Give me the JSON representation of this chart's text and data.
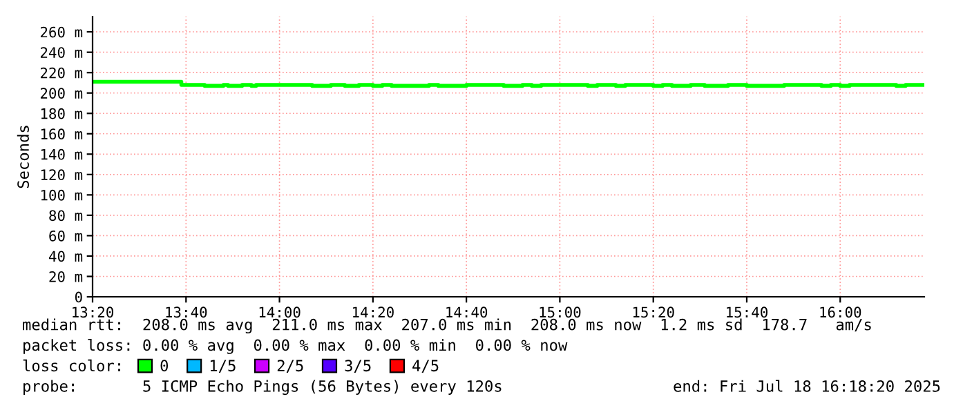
{
  "chart_data": {
    "type": "step",
    "ylabel": "Seconds",
    "x": [
      "2025-07-18T13:20",
      "2025-07-18T13:39",
      "2025-07-18T13:44",
      "2025-07-18T13:48",
      "2025-07-18T13:49",
      "2025-07-18T13:52",
      "2025-07-18T13:54",
      "2025-07-18T13:55",
      "2025-07-18T14:07",
      "2025-07-18T14:11",
      "2025-07-18T14:14",
      "2025-07-18T14:17",
      "2025-07-18T14:20",
      "2025-07-18T14:22",
      "2025-07-18T14:24",
      "2025-07-18T14:32",
      "2025-07-18T14:34",
      "2025-07-18T14:40",
      "2025-07-18T14:48",
      "2025-07-18T14:52",
      "2025-07-18T14:54",
      "2025-07-18T14:56",
      "2025-07-18T15:06",
      "2025-07-18T15:08",
      "2025-07-18T15:12",
      "2025-07-18T15:14",
      "2025-07-18T15:20",
      "2025-07-18T15:22",
      "2025-07-18T15:24",
      "2025-07-18T15:28",
      "2025-07-18T15:31",
      "2025-07-18T15:36",
      "2025-07-18T15:40",
      "2025-07-18T15:48",
      "2025-07-18T15:56",
      "2025-07-18T15:58",
      "2025-07-18T16:00",
      "2025-07-18T16:02",
      "2025-07-18T16:12",
      "2025-07-18T16:14",
      "2025-07-18T16:18"
    ],
    "series": [
      {
        "name": "0",
        "color": "#00ff00",
        "values": [
          211,
          208,
          207,
          208,
          207,
          208,
          207,
          208,
          207,
          208,
          207,
          208,
          207,
          208,
          207,
          208,
          207,
          208,
          207,
          208,
          207,
          208,
          207,
          208,
          207,
          208,
          207,
          208,
          207,
          208,
          207,
          208,
          207,
          208,
          207,
          208,
          207,
          208,
          207,
          208,
          208
        ]
      },
      {
        "name": "1/5",
        "color": "#00b8ff",
        "values": [
          null,
          null,
          null,
          null,
          null,
          null,
          null,
          null,
          null,
          null,
          null,
          null,
          null,
          null,
          null,
          null,
          null,
          null,
          null,
          null,
          null,
          null,
          null,
          null,
          null,
          null,
          null,
          null,
          null,
          null,
          null,
          null,
          null,
          null,
          null,
          null,
          null,
          null,
          null,
          null,
          null
        ]
      },
      {
        "name": "2/5",
        "color": "#cc00ff",
        "values": [
          null,
          null,
          null,
          null,
          null,
          null,
          null,
          null,
          null,
          null,
          null,
          null,
          null,
          null,
          null,
          null,
          null,
          null,
          null,
          null,
          null,
          null,
          null,
          null,
          null,
          null,
          null,
          null,
          null,
          null,
          null,
          null,
          null,
          null,
          null,
          null,
          null,
          null,
          null,
          null,
          null
        ]
      },
      {
        "name": "3/5",
        "color": "#5500ff",
        "values": [
          null,
          null,
          null,
          null,
          null,
          null,
          null,
          null,
          null,
          null,
          null,
          null,
          null,
          null,
          null,
          null,
          null,
          null,
          null,
          null,
          null,
          null,
          null,
          null,
          null,
          null,
          null,
          null,
          null,
          null,
          null,
          null,
          null,
          null,
          null,
          null,
          null,
          null,
          null,
          null,
          null
        ]
      },
      {
        "name": "4/5",
        "color": "#ff0000",
        "values": [
          null,
          null,
          null,
          null,
          null,
          null,
          null,
          null,
          null,
          null,
          null,
          null,
          null,
          null,
          null,
          null,
          null,
          null,
          null,
          null,
          null,
          null,
          null,
          null,
          null,
          null,
          null,
          null,
          null,
          null,
          null,
          null,
          null,
          null,
          null,
          null,
          null,
          null,
          null,
          null,
          null
        ]
      }
    ],
    "legend_title": "loss color:",
    "legend": "bottom",
    "xlim": [
      "2025-07-18T13:20",
      "2025-07-18T16:18"
    ],
    "xticks": [
      {
        "value": "2025-07-18T13:20",
        "label": "13:20"
      },
      {
        "value": "2025-07-18T13:40",
        "label": "13:40"
      },
      {
        "value": "2025-07-18T14:00",
        "label": "14:00"
      },
      {
        "value": "2025-07-18T14:20",
        "label": "14:20"
      },
      {
        "value": "2025-07-18T14:40",
        "label": "14:40"
      },
      {
        "value": "2025-07-18T15:00",
        "label": "15:00"
      },
      {
        "value": "2025-07-18T15:20",
        "label": "15:20"
      },
      {
        "value": "2025-07-18T15:40",
        "label": "15:40"
      },
      {
        "value": "2025-07-18T16:00",
        "label": "16:00"
      }
    ],
    "ylim": [
      0,
      275
    ],
    "yticks": [
      0,
      {
        "value": 20,
        "label": "20 m"
      },
      {
        "value": 40,
        "label": "40 m"
      },
      {
        "value": 60,
        "label": "60 m"
      },
      {
        "value": 80,
        "label": "80 m"
      },
      {
        "value": 100,
        "label": "100 m"
      },
      {
        "value": 120,
        "label": "120 m"
      },
      {
        "value": 140,
        "label": "140 m"
      },
      {
        "value": 160,
        "label": "160 m"
      },
      {
        "value": 180,
        "label": "180 m"
      },
      {
        "value": 200,
        "label": "200 m"
      },
      {
        "value": 220,
        "label": "220 m"
      },
      {
        "value": 240,
        "label": "240 m"
      },
      {
        "value": 260,
        "label": "260 m"
      }
    ],
    "grid": true,
    "annotations": [
      "median rtt:  208.0 ms avg  211.0 ms max  207.0 ms min  208.0 ms now  1.2 ms sd  178.7   am/s",
      "packet loss: 0.00 % avg  0.00 % max  0.00 % min  0.00 % now",
      "probe:       5 ICMP Echo Pings (56 Bytes) every 120s",
      "end: Fri Jul 18 16:18:20 2025"
    ]
  }
}
